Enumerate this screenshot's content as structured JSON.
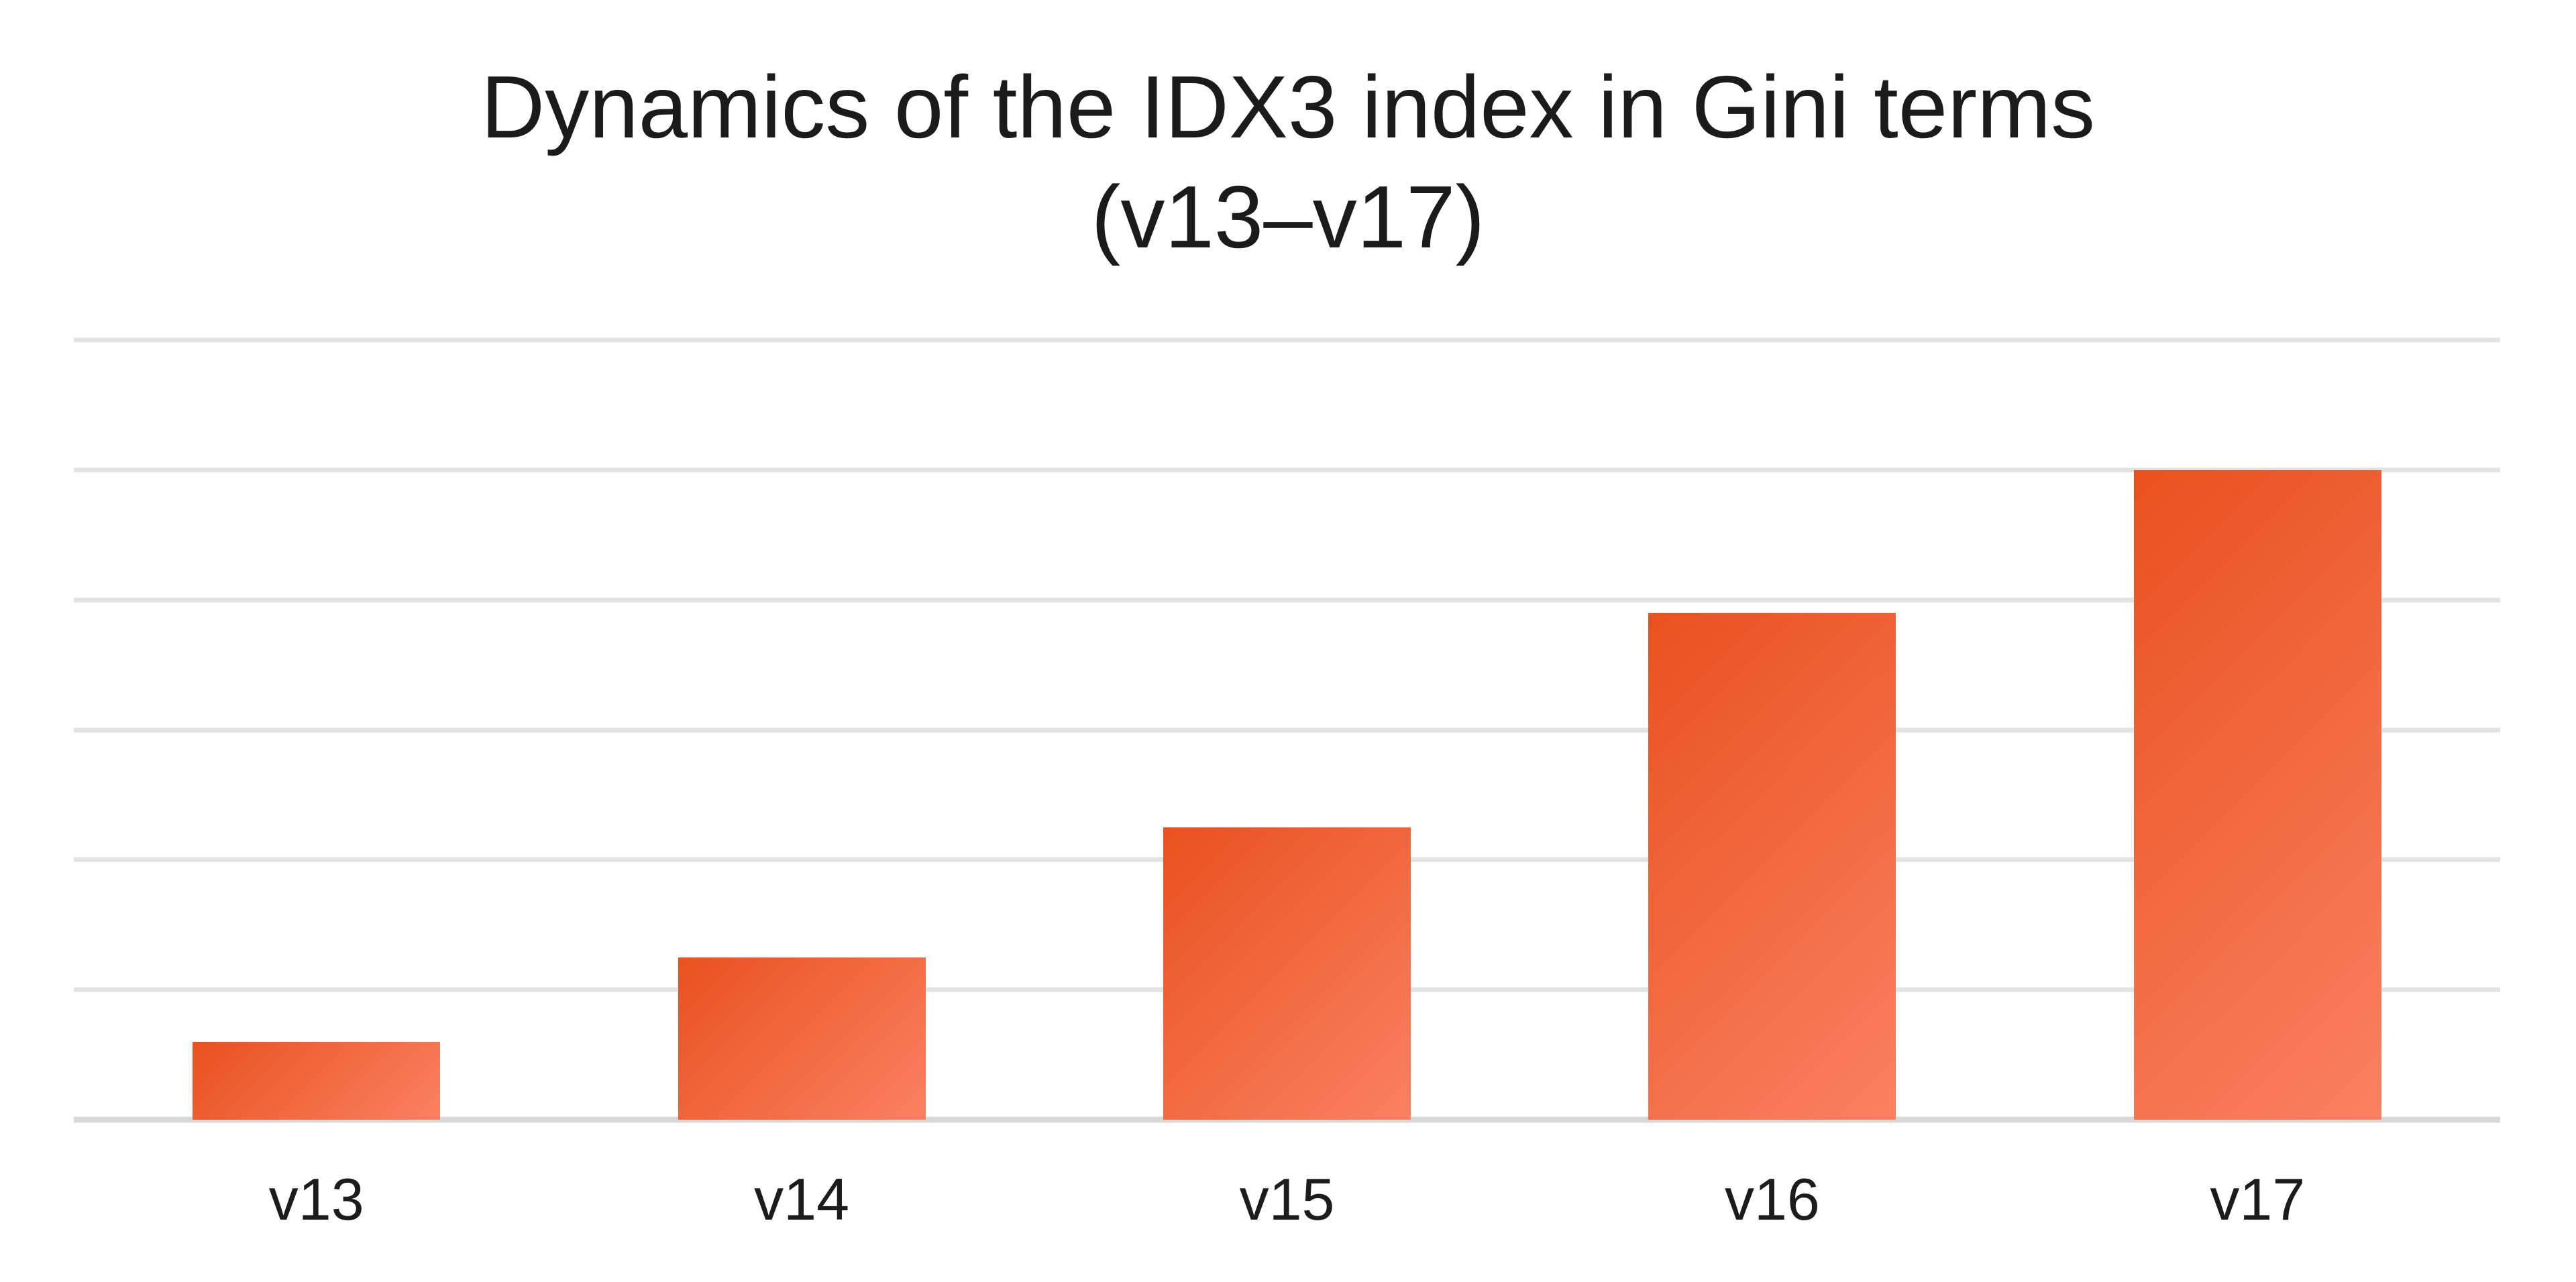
{
  "chart_data": {
    "type": "bar",
    "title": "Dynamics of the IDX3 index in Gini terms (v13–v17)",
    "title_lines": [
      "Dynamics of the IDX3 index in Gini terms",
      "(v13–v17)"
    ],
    "categories": [
      "v13",
      "v14",
      "v15",
      "v16",
      "v17"
    ],
    "values": [
      0.6,
      1.25,
      2.25,
      3.9,
      5.0
    ],
    "values_note": "No y-axis tick labels are shown; values estimated in horizontal-gridline units above the baseline",
    "xlabel": "",
    "ylabel": "",
    "ylim": [
      0,
      6
    ],
    "gridline_interval": 1,
    "gridline_count": 7,
    "y_tick_labels_visible": false,
    "grid": true,
    "legend": false,
    "colors": {
      "bar_gradient_start": "#e9511f",
      "bar_gradient_end": "#fa8161",
      "gridline": "#e3e3e3",
      "baseline": "#d8d8d8",
      "text": "#1b1b1b",
      "background": "#ffffff"
    }
  }
}
